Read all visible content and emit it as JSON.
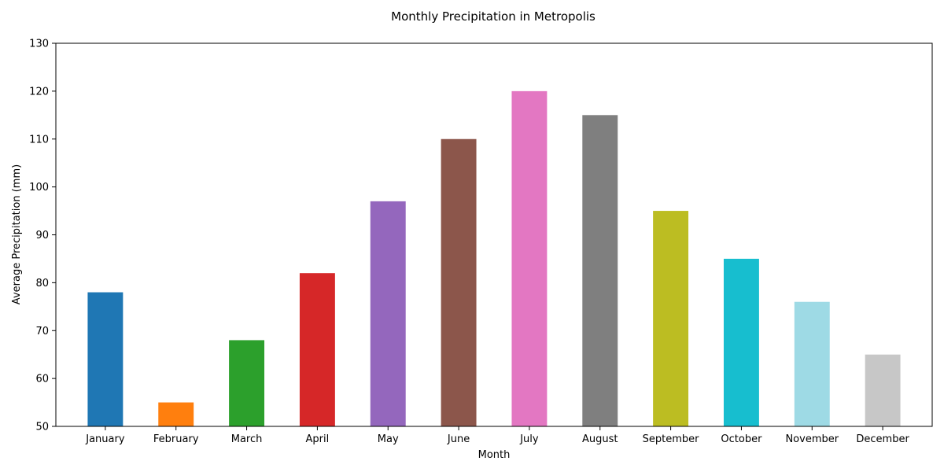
{
  "chart_data": {
    "type": "bar",
    "title": "Monthly Precipitation in Metropolis",
    "xlabel": "Month",
    "ylabel": "Average Precipitation (mm)",
    "ylim": [
      50,
      130
    ],
    "yticks": [
      50,
      60,
      70,
      80,
      90,
      100,
      110,
      120,
      130
    ],
    "grid": false,
    "legend": "none",
    "categories": [
      "January",
      "February",
      "March",
      "April",
      "May",
      "June",
      "July",
      "August",
      "September",
      "October",
      "November",
      "December"
    ],
    "values": [
      78,
      55,
      68,
      82,
      97,
      110,
      120,
      115,
      95,
      85,
      76,
      65
    ],
    "colors": [
      "#1f77b4",
      "#ff7f0e",
      "#2ca02c",
      "#d62728",
      "#9467bd",
      "#8c564b",
      "#e377c2",
      "#7f7f7f",
      "#bcbd22",
      "#17becf",
      "#9edae5",
      "#c7c7c7"
    ]
  }
}
